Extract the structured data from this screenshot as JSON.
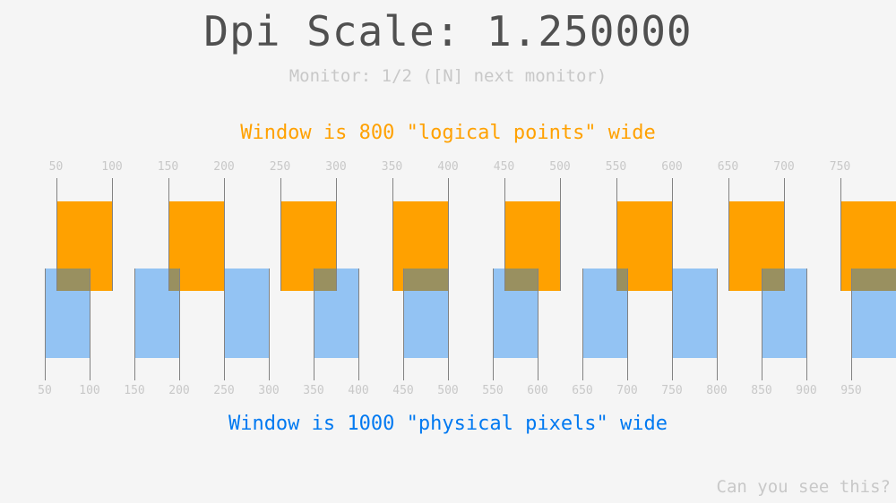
{
  "title": "Dpi Scale: 1.250000",
  "dpi_scale": 1.25,
  "monitor_text": "Monitor: 1/2 ([N] next monitor)",
  "logical_text": "Window is 800 \"logical points\" wide",
  "physical_text": "Window is 1000 \"physical pixels\" wide",
  "hint_text": "Can you see this?",
  "logical_ticks": [
    "50",
    "100",
    "150",
    "200",
    "250",
    "300",
    "350",
    "400",
    "450",
    "500",
    "550",
    "600",
    "650",
    "700",
    "750"
  ],
  "physical_ticks": [
    "50",
    "100",
    "150",
    "200",
    "250",
    "300",
    "350",
    "400",
    "450",
    "500",
    "550",
    "600",
    "650",
    "700",
    "750",
    "800",
    "850",
    "900",
    "950"
  ],
  "colors": {
    "logical": "#ffa100",
    "physical": "#0079f1",
    "title": "#505050",
    "muted": "#c8c8c8",
    "line": "#828282"
  }
}
